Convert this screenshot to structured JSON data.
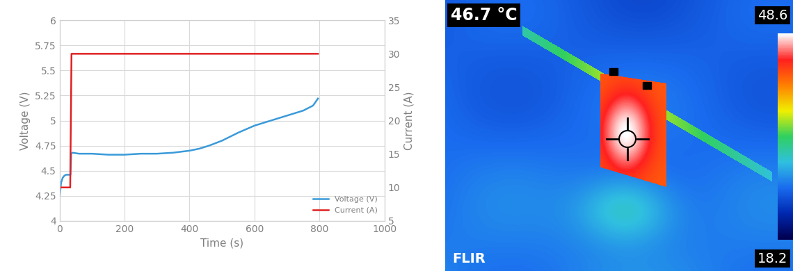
{
  "chart_data": {
    "type": "line",
    "x_label": "Time (s)",
    "y_label": "Voltage (V)",
    "y2_label": "Current (A)",
    "xlim": [
      0,
      1000
    ],
    "xticks": [
      0,
      200,
      400,
      600,
      800,
      1000
    ],
    "ylim": [
      4,
      6
    ],
    "yticks": [
      4,
      4.25,
      4.5,
      4.75,
      5,
      5.25,
      5.5,
      5.75,
      6
    ],
    "y2lim": [
      5,
      35
    ],
    "y2ticks": [
      5,
      10,
      15,
      20,
      25,
      30,
      35
    ],
    "grid": true,
    "legend": "lower right",
    "series": [
      {
        "name": "Voltage (V)",
        "color": "#3a9ad9",
        "x": [
          0,
          5,
          10,
          15,
          20,
          30,
          34,
          36,
          40,
          60,
          100,
          150,
          200,
          250,
          300,
          350,
          400,
          430,
          460,
          500,
          550,
          600,
          650,
          700,
          750,
          780,
          795
        ],
        "values": [
          4.22,
          4.38,
          4.43,
          4.45,
          4.46,
          4.46,
          4.46,
          4.67,
          4.68,
          4.67,
          4.67,
          4.66,
          4.66,
          4.67,
          4.67,
          4.68,
          4.7,
          4.72,
          4.75,
          4.8,
          4.88,
          4.95,
          5.0,
          5.05,
          5.1,
          5.15,
          5.22
        ]
      },
      {
        "name": "Current (A)",
        "color": "#e02020",
        "axis": "y2",
        "x": [
          0,
          33,
          37,
          795
        ],
        "values": [
          10,
          10,
          30,
          30
        ]
      }
    ]
  },
  "thermal_image": {
    "spot_temperature": "46.7 °C",
    "scale_max": "48.6",
    "scale_min": "18.2",
    "logo": "FLIR"
  }
}
